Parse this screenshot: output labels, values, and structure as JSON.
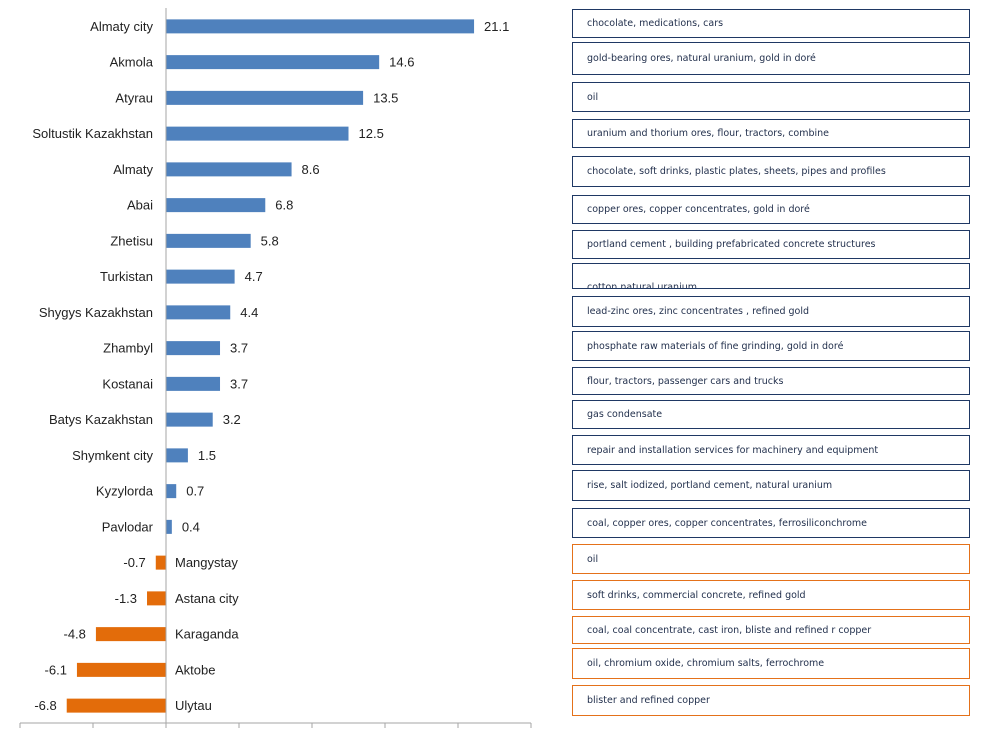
{
  "chart_data": {
    "type": "bar",
    "orientation": "horizontal",
    "title": "",
    "xlabel": "",
    "ylabel": "",
    "xlim": [
      -7.5,
      25
    ],
    "grid": false,
    "colors": {
      "positive": "#4f81bd",
      "negative": "#e36c0a",
      "box_positive": "#1f3864",
      "box_negative": "#e4711a"
    },
    "categories": [
      "Almaty city",
      "Akmola",
      "Atyrau",
      "Soltustik Kazakhstan",
      "Almaty",
      "Abai",
      "Zhetisu",
      "Turkistan",
      "Shygys Kazakhstan",
      "Zhambyl",
      "Kostanai",
      "Batys Kazakhstan",
      "Shymkent city",
      "Kyzylorda",
      "Pavlodar",
      "Mangystay",
      "Astana city",
      "Karaganda",
      "Aktobe",
      "Ulytau"
    ],
    "values": [
      21.1,
      14.6,
      13.5,
      12.5,
      8.6,
      6.8,
      5.8,
      4.7,
      4.4,
      3.7,
      3.7,
      3.2,
      1.5,
      0.7,
      0.4,
      -0.7,
      -1.3,
      -4.8,
      -6.1,
      -6.8
    ],
    "value_labels": [
      "21.1",
      "14.6",
      "13.5",
      "12.5",
      "8.6",
      "6.8",
      "5.8",
      "4.7",
      "4.4",
      "3.7",
      "3.7",
      "3.2",
      "1.5",
      "0.7",
      "0.4",
      "-0.7",
      "-1.3",
      "-4.8",
      "-6.1",
      "-6.8"
    ]
  },
  "annotations": [
    "chocolate, medications, cars",
    "gold-bearing ores, natural uranium, gold in doré",
    "oil",
    "uranium and thorium ores, flour, tractors, combine",
    "chocolate, soft drinks,  plastic plates, sheets, pipes and profiles",
    "copper ores, copper concentrates, gold in doré",
    "portland cement , building prefabricated concrete structures",
    "cotton natural uranium",
    "lead-zinc ores,  zinc concentrates , refined gold",
    "phosphate raw materials of fine grinding, gold in doré",
    "flour, tractors, passenger cars and trucks",
    "gas condensate",
    "repair and installation services for machinery and equipment",
    " rise, salt iodized,  portland cement, natural uranium",
    "coal, copper ores, copper concentrates,  ferrosiliconchrome",
    "oil",
    "soft drinks, commercial concrete, refined gold",
    "coal, coal concentrate, cast iron, bliste and refined r copper",
    "oil, chromium oxide, chromium  salts, ferrochrome",
    "blister and refined copper"
  ]
}
